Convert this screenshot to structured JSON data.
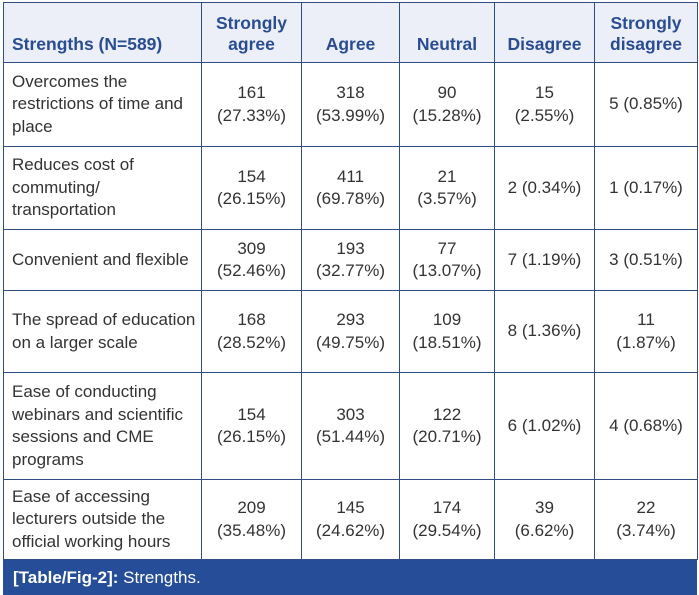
{
  "table": {
    "headers": [
      "Strengths (N=589)",
      "Strongly agree",
      "Agree",
      "Neutral",
      "Disagree",
      "Strongly disagree"
    ],
    "rows": [
      {
        "label": "Overcomes the restrictions of time and place",
        "cells": [
          {
            "count": "161",
            "pct": "(27.33%)"
          },
          {
            "count": "318",
            "pct": "(53.99%)"
          },
          {
            "count": "90",
            "pct": "(15.28%)"
          },
          {
            "count": "15",
            "pct": "(2.55%)"
          },
          {
            "text": "5 (0.85%)"
          }
        ]
      },
      {
        "label": "Reduces cost of commuting/ transportation",
        "cells": [
          {
            "count": "154",
            "pct": "(26.15%)"
          },
          {
            "count": "411",
            "pct": "(69.78%)"
          },
          {
            "count": "21",
            "pct": "(3.57%)"
          },
          {
            "text": "2 (0.34%)"
          },
          {
            "text": "1 (0.17%)"
          }
        ]
      },
      {
        "label": "Convenient and flexible",
        "cells": [
          {
            "count": "309",
            "pct": "(52.46%)"
          },
          {
            "count": "193",
            "pct": "(32.77%)"
          },
          {
            "count": "77",
            "pct": "(13.07%)"
          },
          {
            "text": "7 (1.19%)"
          },
          {
            "text": "3 (0.51%)"
          }
        ]
      },
      {
        "label": "The spread of education on a larger scale",
        "cells": [
          {
            "count": "168",
            "pct": "(28.52%)"
          },
          {
            "count": "293",
            "pct": "(49.75%)"
          },
          {
            "count": "109",
            "pct": "(18.51%)"
          },
          {
            "text": "8 (1.36%)"
          },
          {
            "count": "11",
            "pct": "(1.87%)"
          }
        ]
      },
      {
        "label": "Ease of conducting webinars and scientific sessions and CME programs",
        "cells": [
          {
            "count": "154",
            "pct": "(26.15%)"
          },
          {
            "count": "303",
            "pct": "(51.44%)"
          },
          {
            "count": "122",
            "pct": "(20.71%)"
          },
          {
            "text": "6 (1.02%)"
          },
          {
            "text": "4 (0.68%)"
          }
        ]
      },
      {
        "label": "Ease of accessing lecturers outside the official working hours",
        "cells": [
          {
            "count": "209",
            "pct": "(35.48%)"
          },
          {
            "count": "145",
            "pct": "(24.62%)"
          },
          {
            "count": "174",
            "pct": "(29.54%)"
          },
          {
            "count": "39",
            "pct": "(6.62%)"
          },
          {
            "count": "22",
            "pct": "(3.74%)"
          }
        ]
      }
    ]
  },
  "caption": {
    "label": "[Table/Fig-2]:",
    "text": " Strengths."
  },
  "colors": {
    "header_bg": "#eceff8",
    "header_text": "#2a4d92",
    "border": "#2d4e7e",
    "caption_bg": "#264d97",
    "body_text": "#333333"
  }
}
